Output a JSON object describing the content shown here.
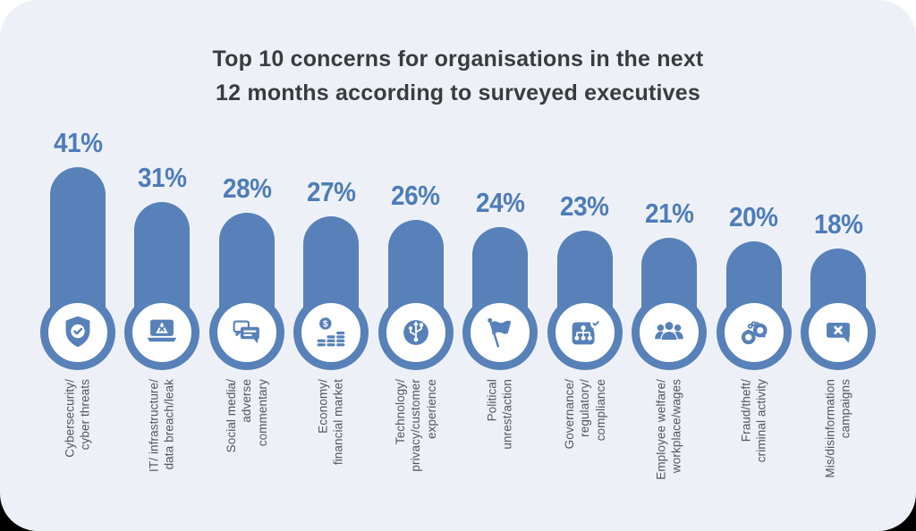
{
  "title": {
    "lines": [
      "Top 10 concerns for organisations in the next",
      "12 months according to surveyed executives"
    ]
  },
  "colors": {
    "bar": "#5781b8",
    "value_label": "#4e7cb9",
    "title_text": "#3b3b3d",
    "category_text": "#54565a",
    "card_background": "#edf1f7",
    "circle_fill": "#ffffff"
  },
  "chart_data": {
    "type": "bar",
    "title": "Top 10 concerns for organisations in the next 12 months according to surveyed executives",
    "unit": "%",
    "orientation": "vertical",
    "value_labels_position": "above bars",
    "categories": [
      "Cybersecurity/ cyber threats",
      "IT/ infrastructure/ data breach/leak",
      "Social media/ adverse commentary",
      "Economy/ financial market",
      "Technology/ privacy/customer experience",
      "Political unrest/action",
      "Governance/ regulatory/ compliance",
      "Employee welfare/ workplace/wages",
      "Fraud/theft/ criminal activity",
      "Mis/disinformation campaigns"
    ],
    "values": [
      41,
      31,
      28,
      27,
      26,
      24,
      23,
      21,
      20,
      18
    ],
    "bars": [
      {
        "value": 41,
        "pct_label": "41%",
        "icon": "shield-check",
        "label_lines": [
          "Cybersecurity/",
          "cyber threats"
        ]
      },
      {
        "value": 31,
        "pct_label": "31%",
        "icon": "laptop-warning",
        "label_lines": [
          "IT/ infrastructure/",
          "data breach/leak"
        ]
      },
      {
        "value": 28,
        "pct_label": "28%",
        "icon": "chat-bubbles",
        "label_lines": [
          "Social media/",
          "adverse",
          "commentary"
        ]
      },
      {
        "value": 27,
        "pct_label": "27%",
        "icon": "money-coins",
        "label_lines": [
          "Economy/",
          "financial market"
        ]
      },
      {
        "value": 26,
        "pct_label": "26%",
        "icon": "usb-symbol",
        "label_lines": [
          "Technology/",
          "privacy/customer",
          "experience"
        ]
      },
      {
        "value": 24,
        "pct_label": "24%",
        "icon": "flag",
        "label_lines": [
          "Political",
          "unrest/action"
        ]
      },
      {
        "value": 23,
        "pct_label": "23%",
        "icon": "org-chart-badge",
        "label_lines": [
          "Governance/",
          "regulatory/",
          "compliance"
        ]
      },
      {
        "value": 21,
        "pct_label": "21%",
        "icon": "people-group",
        "label_lines": [
          "Employee welfare/",
          "workplace/wages"
        ]
      },
      {
        "value": 20,
        "pct_label": "20%",
        "icon": "handcuffs",
        "label_lines": [
          "Fraud/theft/",
          "criminal activity"
        ]
      },
      {
        "value": 18,
        "pct_label": "18%",
        "icon": "chat-x",
        "label_lines": [
          "Mis/disinformation",
          "campaigns"
        ]
      }
    ]
  }
}
